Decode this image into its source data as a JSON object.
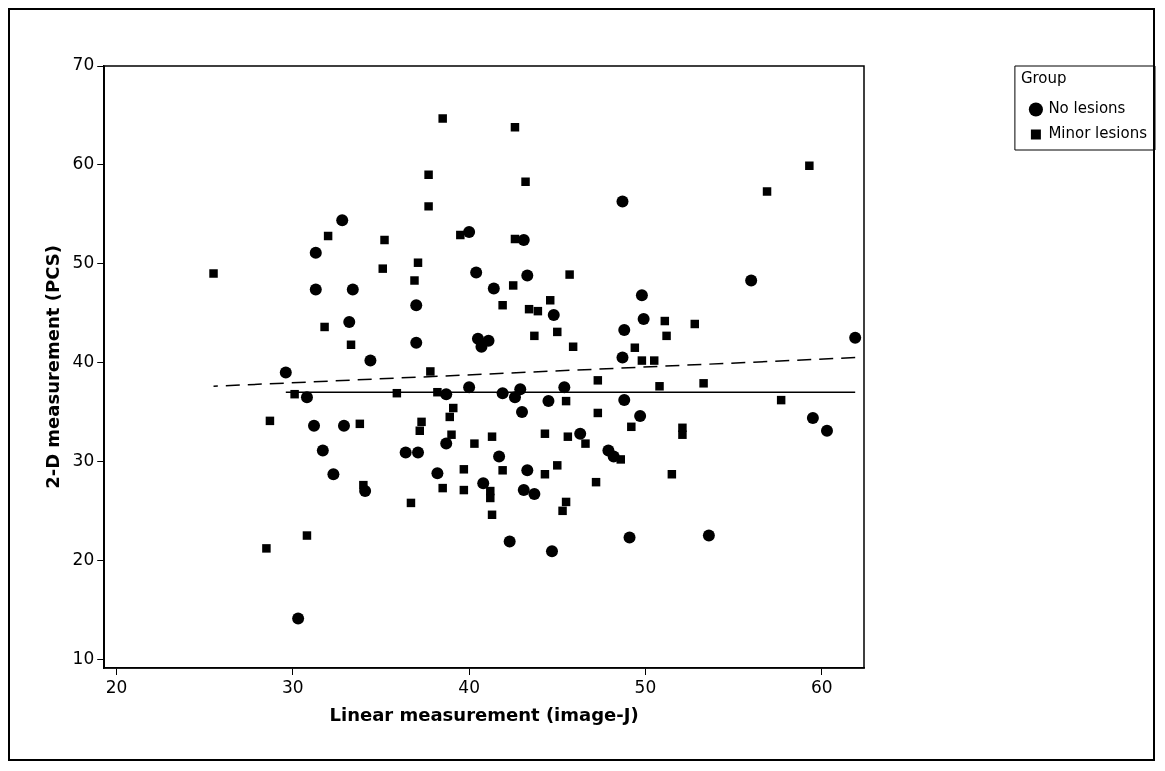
{
  "chart_data": {
    "type": "scatter",
    "xlabel": "Linear measurement (image-J)",
    "ylabel": "2-D measurement (PCS)",
    "legend_title": "Group",
    "legend": "top right",
    "grid": false,
    "xlim": [
      19.3,
      62.4
    ],
    "xticks": [
      20,
      30,
      40,
      50,
      60
    ],
    "ylim": [
      9.1,
      70
    ],
    "yticks": [
      10,
      20,
      30,
      40,
      50,
      60,
      70
    ],
    "series": [
      {
        "name": "No lesions",
        "type": "scatter",
        "marker": "circle",
        "color": "#000000",
        "x": [
          32.8,
          31.3,
          31.3,
          33.4,
          37.0,
          33.2,
          37.0,
          34.4,
          40.0,
          40.4,
          40.5,
          29.6,
          30.8,
          38.7,
          40.0,
          31.2,
          32.9,
          31.7,
          32.3,
          34.1,
          36.4,
          37.1,
          38.2,
          38.7,
          30.3,
          43.1,
          48.7,
          41.4,
          43.3,
          49.8,
          49.9,
          48.8,
          56.0,
          61.9,
          44.8,
          41.1,
          40.7,
          48.7,
          41.9,
          42.9,
          42.6,
          43.0,
          44.5,
          45.4,
          48.8,
          49.7,
          41.7,
          43.3,
          46.3,
          47.9,
          48.2,
          40.8,
          43.1,
          43.7,
          42.3,
          44.7,
          49.1,
          53.6,
          59.5,
          60.3
        ],
        "values": [
          54.4,
          51.1,
          47.4,
          47.4,
          45.8,
          44.1,
          42.0,
          40.2,
          53.2,
          49.1,
          42.4,
          39.0,
          36.5,
          36.8,
          37.5,
          33.6,
          33.6,
          31.1,
          28.7,
          27.0,
          30.9,
          30.9,
          28.8,
          31.8,
          14.1,
          52.4,
          56.3,
          47.5,
          48.8,
          46.8,
          44.4,
          43.3,
          48.3,
          42.5,
          44.8,
          42.2,
          41.6,
          40.5,
          36.9,
          37.3,
          36.5,
          35.0,
          36.1,
          37.5,
          36.2,
          34.6,
          30.5,
          29.1,
          32.8,
          31.1,
          30.5,
          27.8,
          27.1,
          26.7,
          21.9,
          20.9,
          22.3,
          22.5,
          34.4,
          33.1
        ]
      },
      {
        "name": "Minor lesions",
        "type": "scatter",
        "marker": "square",
        "color": "#000000",
        "x": [
          25.5,
          28.5,
          30.8,
          28.7,
          30.1,
          35.9,
          33.8,
          34.0,
          36.7,
          37.8,
          38.2,
          39.1,
          38.9,
          39.0,
          37.3,
          37.2,
          38.5,
          39.7,
          39.7,
          40.3,
          38.5,
          37.7,
          37.7,
          32.0,
          35.2,
          39.5,
          37.1,
          35.1,
          36.9,
          31.8,
          33.3,
          42.6,
          43.2,
          59.3,
          56.9,
          42.6,
          45.7,
          42.5,
          41.9,
          44.6,
          43.4,
          43.9,
          43.7,
          45.0,
          45.9,
          51.1,
          51.2,
          52.8,
          49.4,
          49.8,
          50.5,
          47.3,
          50.8,
          53.3,
          45.5,
          57.7,
          47.3,
          49.2,
          52.1,
          52.1,
          41.3,
          44.3,
          45.6,
          46.6,
          41.9,
          45.0,
          44.3,
          48.6,
          41.2,
          41.2,
          47.2,
          51.5,
          45.5,
          45.3,
          41.3
        ],
        "values": [
          49.0,
          21.2,
          22.5,
          34.1,
          36.8,
          36.9,
          33.8,
          27.6,
          25.8,
          39.1,
          37.0,
          35.4,
          34.5,
          32.7,
          34.0,
          33.1,
          27.3,
          29.2,
          27.1,
          31.8,
          64.7,
          59.0,
          55.8,
          52.8,
          52.4,
          52.9,
          50.1,
          49.5,
          48.3,
          43.6,
          41.8,
          63.8,
          58.3,
          59.9,
          57.3,
          52.5,
          48.9,
          47.8,
          45.8,
          46.3,
          45.4,
          45.2,
          42.7,
          43.1,
          41.6,
          44.2,
          42.7,
          43.9,
          41.5,
          40.2,
          40.2,
          38.2,
          37.6,
          37.9,
          36.1,
          36.2,
          34.9,
          33.5,
          33.4,
          32.7,
          32.5,
          32.8,
          32.5,
          31.8,
          29.1,
          29.6,
          28.7,
          30.2,
          27.0,
          26.3,
          27.9,
          28.7,
          25.9,
          25.0,
          24.6
        ]
      },
      {
        "type": "line",
        "marker": "none",
        "line_style": "solid",
        "color": "#000000",
        "x": [
          29.6,
          61.9
        ],
        "values": [
          37.0,
          37.0
        ]
      },
      {
        "type": "line",
        "marker": "none",
        "line_style": "dashed",
        "color": "#000000",
        "x": [
          61.9,
          25.5
        ],
        "values": [
          40.5,
          37.6
        ]
      }
    ]
  }
}
